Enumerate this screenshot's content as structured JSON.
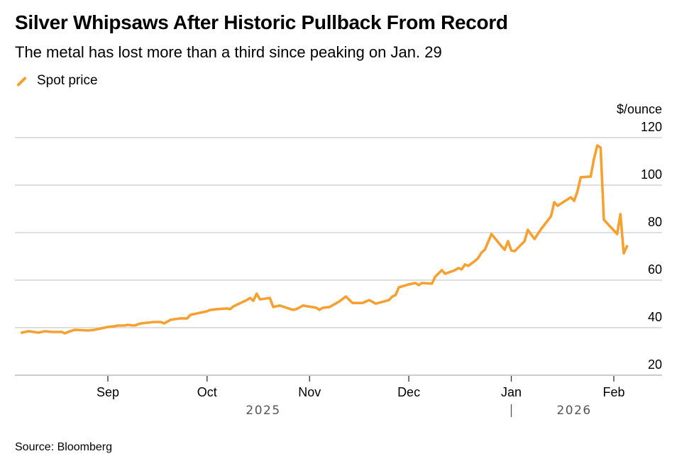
{
  "header": {
    "title": "Silver Whipsaws After Historic Pullback From Record",
    "subtitle": "The metal has lost more than a third since peaking on Jan. 29"
  },
  "legend": {
    "label": "Spot price",
    "color": "#f7a032"
  },
  "footer": {
    "source": "Source: Bloomberg"
  },
  "chart_data": {
    "type": "line",
    "title": "Silver Whipsaws After Historic Pullback From Record",
    "subtitle": "The metal has lost more than a third since peaking on Jan. 29",
    "xlabel": "",
    "ylabel": "$/ounce",
    "ylim": [
      20,
      120
    ],
    "yticks": [
      20,
      40,
      60,
      80,
      100,
      120
    ],
    "grid": true,
    "legend_position": "top-left",
    "x_ticks": [
      {
        "date": "2025-09-01",
        "label": "Sep"
      },
      {
        "date": "2025-10-01",
        "label": "Oct"
      },
      {
        "date": "2025-11-01",
        "label": "Nov"
      },
      {
        "date": "2025-12-01",
        "label": "Dec"
      },
      {
        "date": "2026-01-01",
        "label": "Jan"
      },
      {
        "date": "2026-02-01",
        "label": "Feb"
      }
    ],
    "x_range": [
      "2025-08-03",
      "2026-02-10"
    ],
    "year_labels": [
      {
        "label": "2025",
        "center_date": "2025-10-18"
      },
      {
        "label": "2026",
        "center_date": "2026-01-20"
      }
    ],
    "year_divider_date": "2026-01-01",
    "series": [
      {
        "name": "Spot price",
        "color": "#f7a032",
        "points": [
          [
            "2025-08-06",
            37.9
          ],
          [
            "2025-08-08",
            38.5
          ],
          [
            "2025-08-11",
            37.9
          ],
          [
            "2025-08-13",
            38.5
          ],
          [
            "2025-08-15",
            38.2
          ],
          [
            "2025-08-18",
            38.2
          ],
          [
            "2025-08-19",
            37.6
          ],
          [
            "2025-08-20",
            38.2
          ],
          [
            "2025-08-22",
            39.1
          ],
          [
            "2025-08-26",
            38.8
          ],
          [
            "2025-08-28",
            39.1
          ],
          [
            "2025-09-01",
            40.3
          ],
          [
            "2025-09-03",
            40.6
          ],
          [
            "2025-09-04",
            40.9
          ],
          [
            "2025-09-06",
            40.9
          ],
          [
            "2025-09-07",
            41.2
          ],
          [
            "2025-09-09",
            40.9
          ],
          [
            "2025-09-11",
            41.8
          ],
          [
            "2025-09-15",
            42.4
          ],
          [
            "2025-09-17",
            42.4
          ],
          [
            "2025-09-18",
            41.8
          ],
          [
            "2025-09-20",
            43.3
          ],
          [
            "2025-09-23",
            43.9
          ],
          [
            "2025-09-25",
            43.9
          ],
          [
            "2025-09-26",
            45.4
          ],
          [
            "2025-09-29",
            46.3
          ],
          [
            "2025-10-01",
            46.9
          ],
          [
            "2025-10-02",
            47.5
          ],
          [
            "2025-10-04",
            47.8
          ],
          [
            "2025-10-07",
            48.1
          ],
          [
            "2025-10-08",
            47.8
          ],
          [
            "2025-10-09",
            49.0
          ],
          [
            "2025-10-13",
            51.6
          ],
          [
            "2025-10-14",
            52.5
          ],
          [
            "2025-10-15",
            51.3
          ],
          [
            "2025-10-16",
            54.3
          ],
          [
            "2025-10-17",
            51.9
          ],
          [
            "2025-10-20",
            52.5
          ],
          [
            "2025-10-21",
            48.7
          ],
          [
            "2025-10-23",
            49.3
          ],
          [
            "2025-10-27",
            47.5
          ],
          [
            "2025-10-28",
            47.8
          ],
          [
            "2025-10-30",
            49.3
          ],
          [
            "2025-11-03",
            48.4
          ],
          [
            "2025-11-04",
            47.5
          ],
          [
            "2025-11-05",
            48.4
          ],
          [
            "2025-11-07",
            48.7
          ],
          [
            "2025-11-10",
            51.0
          ],
          [
            "2025-11-12",
            53.1
          ],
          [
            "2025-11-14",
            50.4
          ],
          [
            "2025-11-17",
            50.4
          ],
          [
            "2025-11-19",
            51.6
          ],
          [
            "2025-11-21",
            50.1
          ],
          [
            "2025-11-25",
            51.6
          ],
          [
            "2025-11-26",
            53.1
          ],
          [
            "2025-11-27",
            53.7
          ],
          [
            "2025-11-28",
            57.0
          ],
          [
            "2025-12-01",
            58.2
          ],
          [
            "2025-12-03",
            58.8
          ],
          [
            "2025-12-04",
            57.9
          ],
          [
            "2025-12-05",
            58.8
          ],
          [
            "2025-12-08",
            58.5
          ],
          [
            "2025-12-09",
            61.5
          ],
          [
            "2025-12-11",
            64.2
          ],
          [
            "2025-12-12",
            62.7
          ],
          [
            "2025-12-15",
            64.2
          ],
          [
            "2025-12-16",
            65.1
          ],
          [
            "2025-12-17",
            64.5
          ],
          [
            "2025-12-18",
            66.6
          ],
          [
            "2025-12-19",
            66.0
          ],
          [
            "2025-12-21",
            68.1
          ],
          [
            "2025-12-22",
            69.3
          ],
          [
            "2025-12-23",
            71.6
          ],
          [
            "2025-12-24",
            72.8
          ],
          [
            "2025-12-26",
            79.4
          ],
          [
            "2025-12-29",
            74.3
          ],
          [
            "2025-12-30",
            72.8
          ],
          [
            "2025-12-31",
            76.4
          ],
          [
            "2026-01-01",
            72.5
          ],
          [
            "2026-01-02",
            72.2
          ],
          [
            "2026-01-05",
            76.4
          ],
          [
            "2026-01-06",
            81.2
          ],
          [
            "2026-01-08",
            77.3
          ],
          [
            "2026-01-10",
            81.5
          ],
          [
            "2026-01-13",
            86.9
          ],
          [
            "2026-01-14",
            92.8
          ],
          [
            "2026-01-15",
            91.3
          ],
          [
            "2026-01-19",
            94.9
          ],
          [
            "2026-01-20",
            93.4
          ],
          [
            "2026-01-21",
            97.3
          ],
          [
            "2026-01-22",
            103.3
          ],
          [
            "2026-01-25",
            103.6
          ],
          [
            "2026-01-26",
            111.0
          ],
          [
            "2026-01-27",
            116.7
          ],
          [
            "2026-01-28",
            115.8
          ],
          [
            "2026-01-29",
            85.4
          ],
          [
            "2026-02-02",
            79.4
          ],
          [
            "2026-02-03",
            87.8
          ],
          [
            "2026-02-04",
            71.3
          ],
          [
            "2026-02-05",
            74.3
          ]
        ]
      }
    ]
  }
}
